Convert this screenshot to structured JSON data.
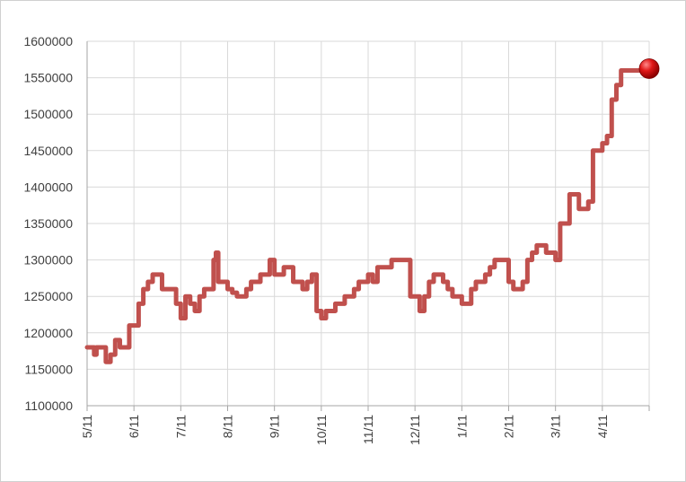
{
  "chart_data": {
    "type": "line",
    "title": "",
    "xlabel": "",
    "ylabel": "",
    "x_tick_labels": [
      "5/11",
      "6/11",
      "7/11",
      "8/11",
      "9/11",
      "10/11",
      "11/11",
      "12/11",
      "1/11",
      "2/11",
      "3/11",
      "4/11"
    ],
    "ylim": [
      1100000,
      1600000
    ],
    "y_tick_labels": [
      "1100000",
      "1150000",
      "1200000",
      "1250000",
      "1300000",
      "1350000",
      "1400000",
      "1450000",
      "1500000",
      "1550000",
      "1600000"
    ],
    "grid": true,
    "legend": "none",
    "line_color": "#C0504D",
    "marker_color": "#C00000",
    "series": [
      {
        "x": [
          0.0,
          0.1,
          0.15,
          0.2,
          0.3,
          0.4,
          0.5,
          0.6,
          0.7,
          0.8,
          0.9,
          1.0,
          1.1,
          1.2,
          1.3,
          1.4,
          1.5,
          1.6,
          1.7,
          1.8,
          1.9,
          2.0,
          2.1,
          2.2,
          2.3,
          2.4,
          2.5,
          2.6,
          2.7,
          2.75,
          2.8,
          2.9,
          3.0,
          3.1,
          3.2,
          3.3,
          3.4,
          3.5,
          3.6,
          3.7,
          3.8,
          3.9,
          4.0,
          4.1,
          4.2,
          4.3,
          4.4,
          4.5,
          4.6,
          4.7,
          4.8,
          4.9,
          5.0,
          5.1,
          5.2,
          5.3,
          5.4,
          5.5,
          5.6,
          5.7,
          5.8,
          5.9,
          6.0,
          6.1,
          6.2,
          6.3,
          6.4,
          6.5,
          6.6,
          6.7,
          6.8,
          6.9,
          7.0,
          7.1,
          7.2,
          7.3,
          7.4,
          7.5,
          7.6,
          7.7,
          7.8,
          7.9,
          8.0,
          8.1,
          8.2,
          8.3,
          8.4,
          8.5,
          8.6,
          8.7,
          8.8,
          8.9,
          9.0,
          9.1,
          9.2,
          9.3,
          9.4,
          9.5,
          9.6,
          9.7,
          9.8,
          9.9,
          10.0,
          10.1,
          10.2,
          10.3,
          10.4,
          10.5,
          10.6,
          10.7,
          10.8,
          10.9,
          11.0,
          11.1,
          11.2,
          11.3,
          11.4,
          11.5,
          11.6,
          11.7,
          11.8,
          11.9,
          12.0
        ],
        "values": [
          1180000,
          1180000,
          1170000,
          1180000,
          1180000,
          1160000,
          1170000,
          1190000,
          1180000,
          1180000,
          1210000,
          1210000,
          1240000,
          1260000,
          1270000,
          1280000,
          1280000,
          1260000,
          1260000,
          1260000,
          1240000,
          1220000,
          1250000,
          1240000,
          1230000,
          1250000,
          1260000,
          1260000,
          1300000,
          1310000,
          1270000,
          1270000,
          1260000,
          1255000,
          1250000,
          1250000,
          1260000,
          1270000,
          1270000,
          1280000,
          1280000,
          1300000,
          1280000,
          1280000,
          1290000,
          1290000,
          1270000,
          1270000,
          1260000,
          1270000,
          1280000,
          1230000,
          1220000,
          1230000,
          1230000,
          1240000,
          1240000,
          1250000,
          1250000,
          1260000,
          1270000,
          1270000,
          1280000,
          1270000,
          1290000,
          1290000,
          1290000,
          1300000,
          1300000,
          1300000,
          1300000,
          1250000,
          1250000,
          1230000,
          1250000,
          1270000,
          1280000,
          1280000,
          1270000,
          1260000,
          1250000,
          1250000,
          1240000,
          1240000,
          1260000,
          1270000,
          1270000,
          1280000,
          1290000,
          1300000,
          1300000,
          1300000,
          1270000,
          1260000,
          1260000,
          1270000,
          1300000,
          1310000,
          1320000,
          1320000,
          1310000,
          1310000,
          1300000,
          1350000,
          1350000,
          1390000,
          1390000,
          1370000,
          1370000,
          1380000,
          1450000,
          1450000,
          1460000,
          1470000,
          1520000,
          1540000,
          1560000,
          1560000,
          1560000,
          1560000,
          1560000,
          1560000,
          1560000
        ],
        "last_point_marker": true
      }
    ]
  }
}
